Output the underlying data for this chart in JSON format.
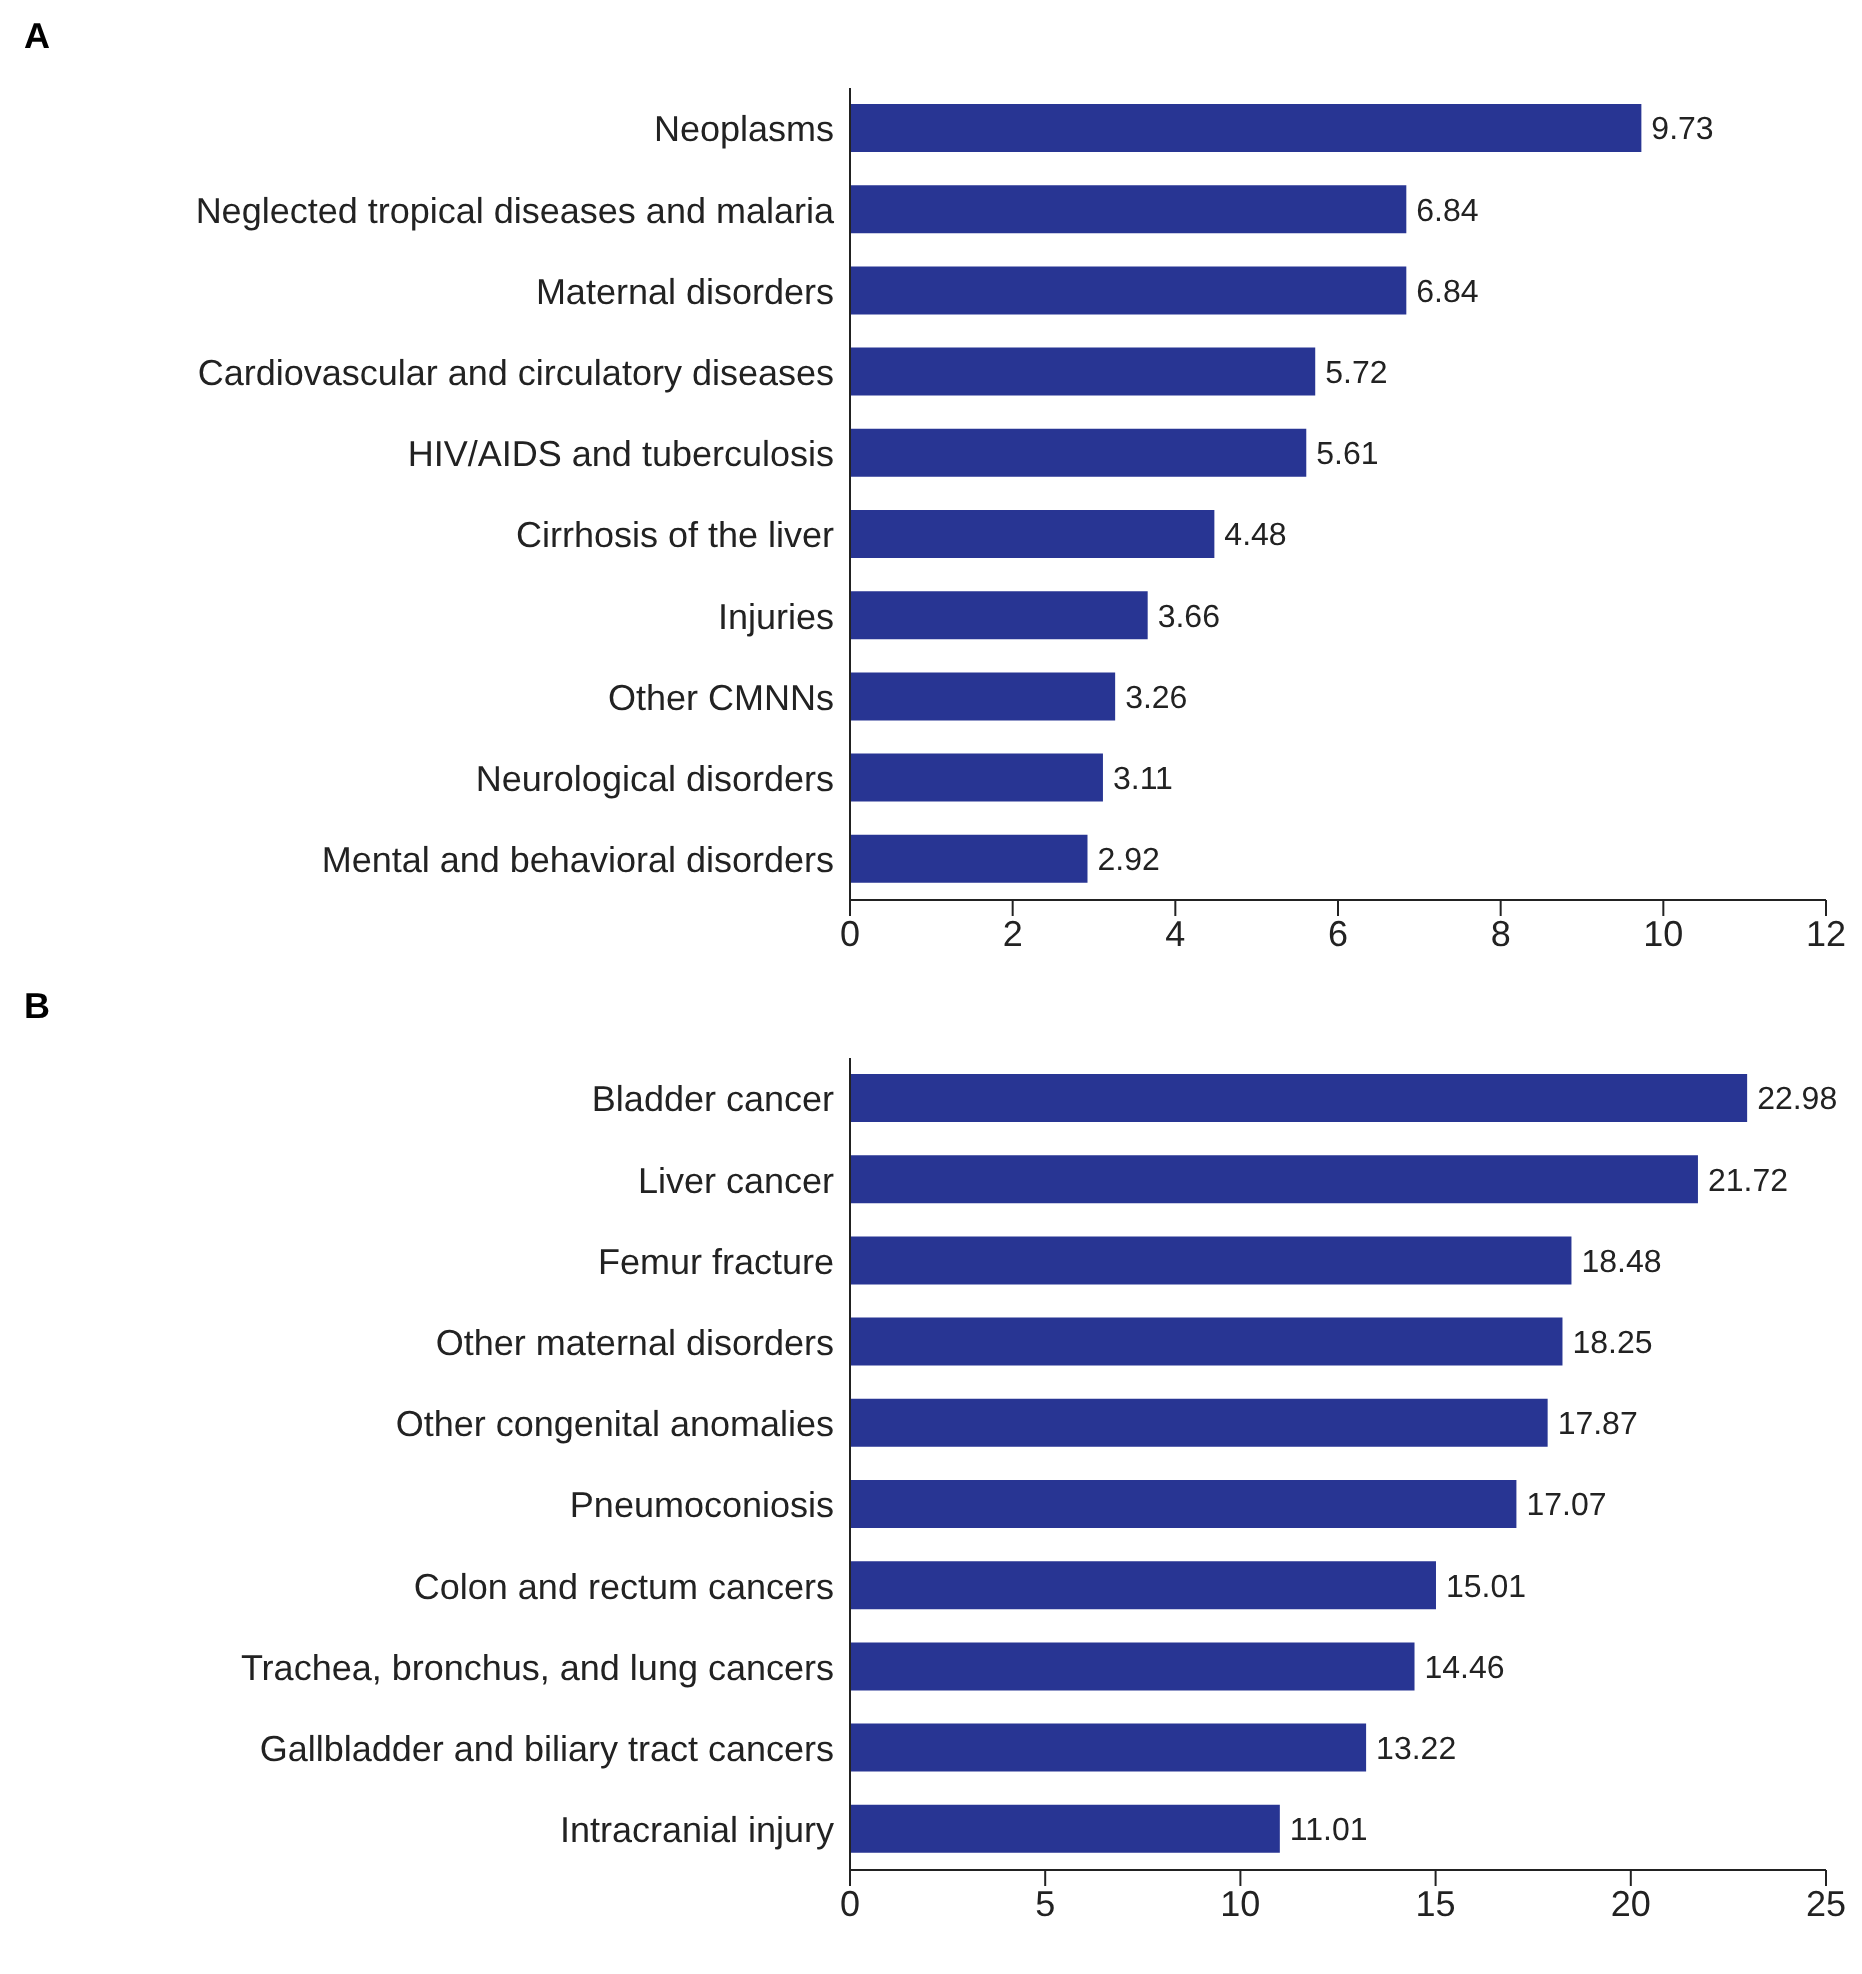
{
  "chart_data": [
    {
      "type": "bar",
      "orientation": "horizontal",
      "title": "A",
      "categories": [
        "Neoplasms",
        "Neglected tropical diseases and malaria",
        "Maternal disorders",
        "Cardiovascular and circulatory diseases",
        "HIV/AIDS and tuberculosis",
        "Cirrhosis of the liver",
        "Injuries",
        "Other CMNNs",
        "Neurological disorders",
        "Mental and behavioral disorders"
      ],
      "values": [
        9.73,
        6.84,
        6.84,
        5.72,
        5.61,
        4.48,
        3.66,
        3.26,
        3.11,
        2.92
      ],
      "color": "#283593",
      "xlim": [
        0,
        12
      ],
      "xticks": [
        0,
        2,
        4,
        6,
        8,
        10,
        12
      ],
      "data_labels": true,
      "grid": false,
      "legend": false
    },
    {
      "type": "bar",
      "orientation": "horizontal",
      "title": "B",
      "categories": [
        "Bladder cancer",
        "Liver cancer",
        "Femur fracture",
        "Other maternal disorders",
        "Other congenital anomalies",
        "Pneumoconiosis",
        "Colon and rectum cancers",
        "Trachea, bronchus, and lung cancers",
        "Gallbladder and biliary tract cancers",
        "Intracranial injury"
      ],
      "values": [
        22.98,
        21.72,
        18.48,
        18.25,
        17.87,
        17.07,
        15.01,
        14.46,
        13.22,
        11.01
      ],
      "color": "#283593",
      "xlim": [
        0,
        25
      ],
      "xticks": [
        0,
        5,
        10,
        15,
        20,
        25
      ],
      "data_labels": true,
      "grid": false,
      "legend": false
    }
  ]
}
